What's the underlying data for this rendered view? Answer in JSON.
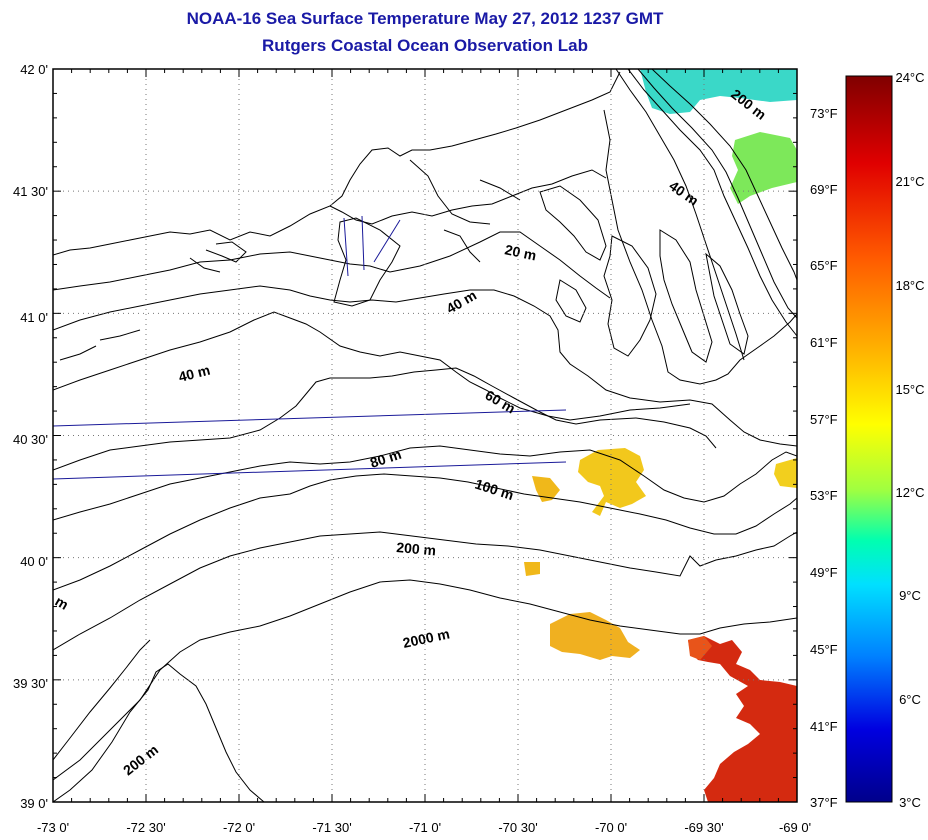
{
  "header": {
    "title": "NOAA-16 Sea Surface Temperature May 27, 2012 1237 GMT",
    "subtitle": "Rutgers Coastal Ocean Observation Lab"
  },
  "map": {
    "lon_labels": [
      "-73 0'",
      "-72 30'",
      "-72 0'",
      "-71 30'",
      "-71 0'",
      "-70 30'",
      "-70 0'",
      "-69 30'",
      "-69 0'"
    ],
    "lat_labels": [
      "42 0'",
      "41 30'",
      "41 0'",
      "40 30'",
      "40 0'",
      "39 30'",
      "39 0'"
    ],
    "fahrenheit_labels": [
      "73°F",
      "69°F",
      "65°F",
      "61°F",
      "57°F",
      "53°F",
      "49°F",
      "45°F",
      "41°F",
      "37°F"
    ],
    "isobath_labels": [
      "200 m",
      "40 m",
      "20 m",
      "40 m",
      "40 m",
      "60 m",
      "80 m",
      "100 m",
      "200 m",
      "2000 m",
      "200 m",
      "m"
    ],
    "lon_range": [
      -73,
      -69
    ],
    "lat_range": [
      39,
      42
    ],
    "grid": "dotted"
  },
  "colorbar": {
    "labels": [
      "24°C",
      "21°C",
      "18°C",
      "15°C",
      "12°C",
      "9°C",
      "6°C",
      "3°C"
    ],
    "min_c": 3,
    "max_c": 24,
    "colors": [
      "#800000",
      "#ff0000",
      "#ff8c00",
      "#ffff00",
      "#00ffff",
      "#0000ff",
      "#00008b"
    ]
  }
}
